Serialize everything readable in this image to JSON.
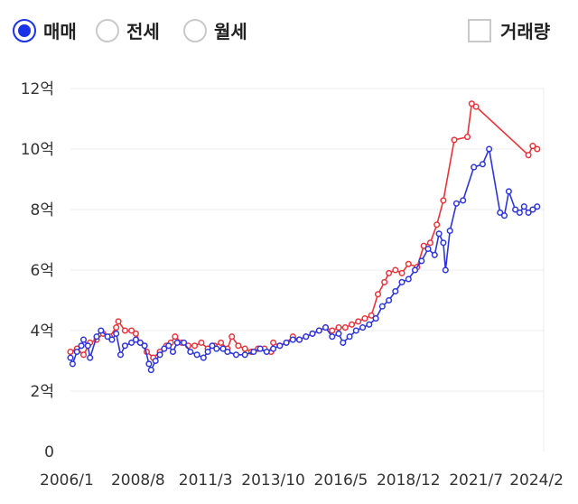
{
  "controls": {
    "radios": [
      {
        "label": "매매",
        "selected": true
      },
      {
        "label": "전세",
        "selected": false
      },
      {
        "label": "월세",
        "selected": false
      }
    ],
    "volume_checkbox": {
      "label": "거래량",
      "checked": false
    }
  },
  "colors": {
    "accent": "#1a33e6",
    "red": "#e8333a",
    "blue": "#2d35d8",
    "grid": "#ececec"
  },
  "chart_data": {
    "type": "line",
    "ylim": [
      0,
      12
    ],
    "xlim": [
      "2006/1",
      "2024/2"
    ],
    "ytick_labels": [
      "0",
      "2억",
      "4억",
      "6억",
      "8억",
      "10억",
      "12억"
    ],
    "xtick_labels": [
      "2006/1",
      "2008/8",
      "2011/3",
      "2013/10",
      "2016/5",
      "2018/12",
      "2021/7",
      "2024/2"
    ],
    "grid": true,
    "series": [
      {
        "color": "#e8333a",
        "points": [
          [
            "2006/1",
            3.3
          ],
          [
            "2006/4",
            3.4
          ],
          [
            "2006/7",
            3.2
          ],
          [
            "2006/10",
            3.6
          ],
          [
            "2007/1",
            3.7
          ],
          [
            "2007/4",
            3.9
          ],
          [
            "2007/7",
            3.8
          ],
          [
            "2007/10",
            4.1
          ],
          [
            "2007/11",
            4.3
          ],
          [
            "2008/2",
            4.0
          ],
          [
            "2008/5",
            4.0
          ],
          [
            "2008/7",
            3.9
          ],
          [
            "2008/9",
            3.6
          ],
          [
            "2008/12",
            3.3
          ],
          [
            "2009/3",
            3.1
          ],
          [
            "2009/6",
            3.3
          ],
          [
            "2009/9",
            3.5
          ],
          [
            "2009/11",
            3.6
          ],
          [
            "2010/1",
            3.8
          ],
          [
            "2010/4",
            3.6
          ],
          [
            "2010/7",
            3.5
          ],
          [
            "2010/10",
            3.5
          ],
          [
            "2011/1",
            3.6
          ],
          [
            "2011/4",
            3.4
          ],
          [
            "2011/7",
            3.5
          ],
          [
            "2011/10",
            3.6
          ],
          [
            "2012/1",
            3.4
          ],
          [
            "2012/3",
            3.8
          ],
          [
            "2012/6",
            3.5
          ],
          [
            "2012/9",
            3.4
          ],
          [
            "2012/12",
            3.3
          ],
          [
            "2013/3",
            3.4
          ],
          [
            "2013/6",
            3.4
          ],
          [
            "2013/9",
            3.3
          ],
          [
            "2013/10",
            3.6
          ],
          [
            "2014/1",
            3.5
          ],
          [
            "2014/4",
            3.6
          ],
          [
            "2014/7",
            3.8
          ],
          [
            "2014/10",
            3.7
          ],
          [
            "2015/1",
            3.8
          ],
          [
            "2015/4",
            3.9
          ],
          [
            "2015/7",
            4.0
          ],
          [
            "2015/10",
            4.1
          ],
          [
            "2016/1",
            4.0
          ],
          [
            "2016/4",
            4.1
          ],
          [
            "2016/7",
            4.1
          ],
          [
            "2016/10",
            4.2
          ],
          [
            "2017/1",
            4.3
          ],
          [
            "2017/4",
            4.4
          ],
          [
            "2017/7",
            4.5
          ],
          [
            "2017/10",
            5.2
          ],
          [
            "2018/1",
            5.6
          ],
          [
            "2018/3",
            5.9
          ],
          [
            "2018/6",
            6.0
          ],
          [
            "2018/9",
            5.9
          ],
          [
            "2018/12",
            6.2
          ],
          [
            "2019/4",
            6.1
          ],
          [
            "2019/7",
            6.8
          ],
          [
            "2019/10",
            6.9
          ],
          [
            "2020/1",
            7.5
          ],
          [
            "2020/4",
            8.3
          ],
          [
            "2020/9",
            10.3
          ],
          [
            "2021/3",
            10.4
          ],
          [
            "2021/5",
            11.5
          ],
          [
            "2021/7",
            11.4
          ],
          [
            "2023/7",
            9.8
          ],
          [
            "2023/9",
            10.1
          ],
          [
            "2023/11",
            10.0
          ]
        ]
      },
      {
        "color": "#2d35d8",
        "points": [
          [
            "2006/1",
            3.1
          ],
          [
            "2006/2",
            2.9
          ],
          [
            "2006/4",
            3.3
          ],
          [
            "2006/6",
            3.5
          ],
          [
            "2006/7",
            3.7
          ],
          [
            "2006/9",
            3.5
          ],
          [
            "2006/10",
            3.1
          ],
          [
            "2007/1",
            3.8
          ],
          [
            "2007/3",
            4.0
          ],
          [
            "2007/6",
            3.8
          ],
          [
            "2007/8",
            3.7
          ],
          [
            "2007/10",
            3.9
          ],
          [
            "2007/12",
            3.2
          ],
          [
            "2008/2",
            3.5
          ],
          [
            "2008/5",
            3.6
          ],
          [
            "2008/7",
            3.7
          ],
          [
            "2008/9",
            3.6
          ],
          [
            "2008/11",
            3.5
          ],
          [
            "2009/1",
            2.9
          ],
          [
            "2009/2",
            2.7
          ],
          [
            "2009/4",
            3.0
          ],
          [
            "2009/6",
            3.2
          ],
          [
            "2009/8",
            3.4
          ],
          [
            "2009/10",
            3.5
          ],
          [
            "2009/12",
            3.3
          ],
          [
            "2010/2",
            3.6
          ],
          [
            "2010/5",
            3.6
          ],
          [
            "2010/8",
            3.3
          ],
          [
            "2010/11",
            3.2
          ],
          [
            "2011/2",
            3.1
          ],
          [
            "2011/4",
            3.3
          ],
          [
            "2011/6",
            3.5
          ],
          [
            "2011/8",
            3.4
          ],
          [
            "2011/11",
            3.4
          ],
          [
            "2012/1",
            3.3
          ],
          [
            "2012/5",
            3.2
          ],
          [
            "2012/9",
            3.2
          ],
          [
            "2013/1",
            3.3
          ],
          [
            "2013/4",
            3.4
          ],
          [
            "2013/7",
            3.3
          ],
          [
            "2013/10",
            3.4
          ],
          [
            "2014/1",
            3.5
          ],
          [
            "2014/4",
            3.6
          ],
          [
            "2014/7",
            3.7
          ],
          [
            "2014/10",
            3.7
          ],
          [
            "2015/1",
            3.8
          ],
          [
            "2015/4",
            3.9
          ],
          [
            "2015/7",
            4.0
          ],
          [
            "2015/10",
            4.1
          ],
          [
            "2016/1",
            3.8
          ],
          [
            "2016/4",
            3.9
          ],
          [
            "2016/6",
            3.6
          ],
          [
            "2016/9",
            3.8
          ],
          [
            "2016/12",
            4.0
          ],
          [
            "2017/3",
            4.1
          ],
          [
            "2017/6",
            4.2
          ],
          [
            "2017/9",
            4.4
          ],
          [
            "2017/12",
            4.8
          ],
          [
            "2018/3",
            5.0
          ],
          [
            "2018/6",
            5.3
          ],
          [
            "2018/9",
            5.6
          ],
          [
            "2018/12",
            5.7
          ],
          [
            "2019/3",
            6.0
          ],
          [
            "2019/6",
            6.3
          ],
          [
            "2019/9",
            6.7
          ],
          [
            "2019/12",
            6.5
          ],
          [
            "2020/2",
            7.2
          ],
          [
            "2020/4",
            6.9
          ],
          [
            "2020/5",
            6.0
          ],
          [
            "2020/7",
            7.3
          ],
          [
            "2020/10",
            8.2
          ],
          [
            "2021/1",
            8.3
          ],
          [
            "2021/6",
            9.4
          ],
          [
            "2021/10",
            9.5
          ],
          [
            "2022/1",
            10.0
          ],
          [
            "2022/6",
            7.9
          ],
          [
            "2022/8",
            7.8
          ],
          [
            "2022/10",
            8.6
          ],
          [
            "2023/1",
            8.0
          ],
          [
            "2023/3",
            7.9
          ],
          [
            "2023/5",
            8.1
          ],
          [
            "2023/7",
            7.9
          ],
          [
            "2023/9",
            8.0
          ],
          [
            "2023/11",
            8.1
          ]
        ]
      }
    ]
  }
}
